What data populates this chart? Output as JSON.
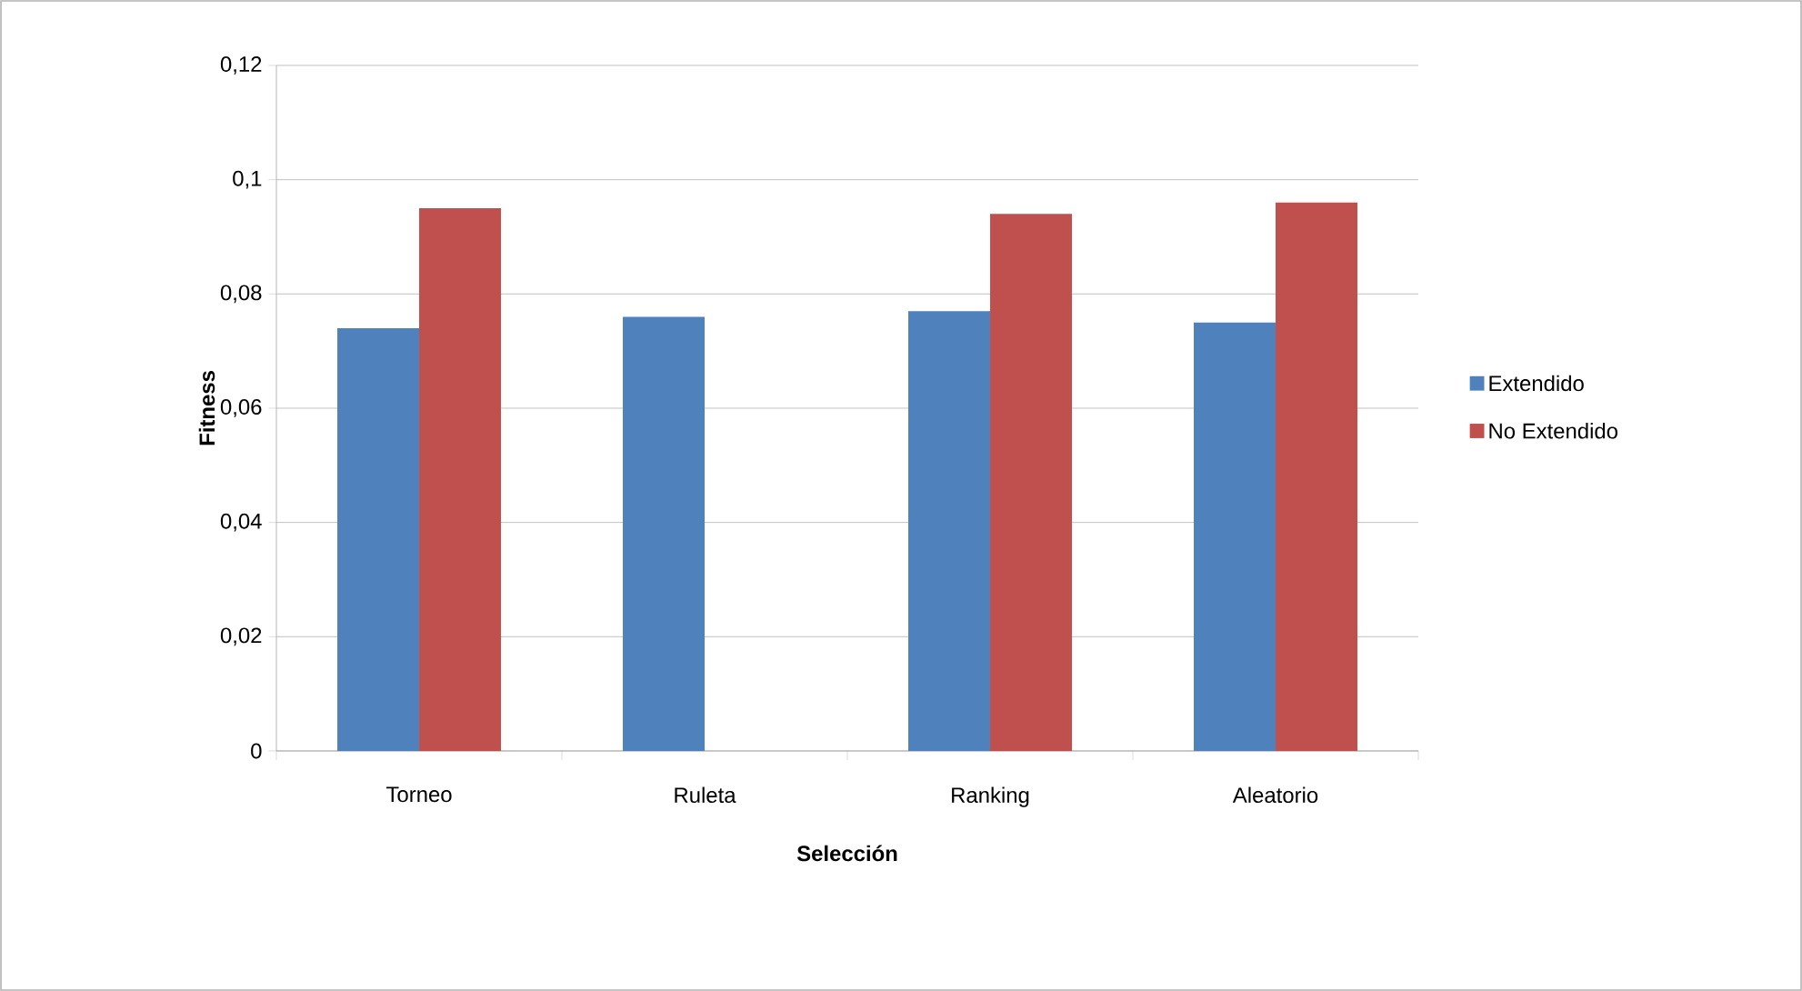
{
  "chart_data": {
    "type": "bar",
    "xlabel": "Selección",
    "ylabel": "Fitness",
    "categories": [
      "Torneo",
      "Ruleta",
      "Ranking",
      "Aleatorio"
    ],
    "series": [
      {
        "name": "Extendido",
        "color": "#4f81bd",
        "values": [
          0.074,
          0.076,
          0.077,
          0.075
        ]
      },
      {
        "name": "No Extendido",
        "color": "#c0504d",
        "values": [
          0.095,
          null,
          0.094,
          0.096
        ]
      }
    ],
    "ylim": [
      0,
      0.12
    ],
    "yticks": [
      0,
      {
        "value": 0.02,
        "label": "0,02"
      },
      {
        "value": 0.04,
        "label": "0,04"
      },
      {
        "value": 0.06,
        "label": "0,06"
      },
      {
        "value": 0.08,
        "label": "0,08"
      },
      {
        "value": 0.1,
        "label": "0,1"
      },
      {
        "value": 0.12,
        "label": "0,12"
      }
    ],
    "grid": "y",
    "legend": "right"
  }
}
